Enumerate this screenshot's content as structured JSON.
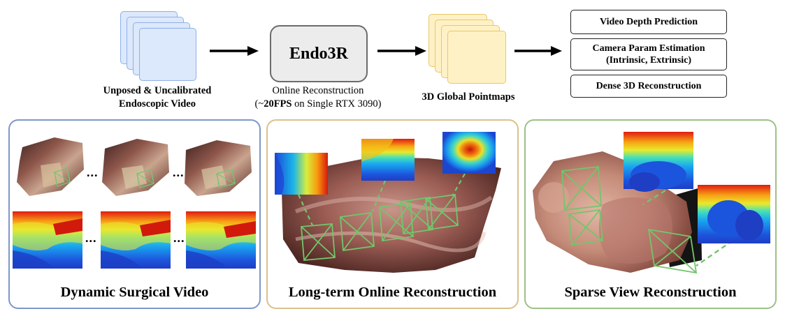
{
  "pipeline": {
    "input_caption_line1": "Unposed & Uncalibrated",
    "input_caption_line2": "Endoscopic Video",
    "model_name": "Endo3R",
    "model_caption_line1": "Online Reconstruction",
    "model_caption_line2_prefix": "(~",
    "model_caption_line2_bold": "20FPS",
    "model_caption_line2_suffix": " on Single RTX 3090)",
    "pointmaps_caption": "3D Global Pointmaps",
    "outputs": [
      {
        "line1": "Video Depth Prediction",
        "line2": ""
      },
      {
        "line1": "Camera Param Estimation",
        "line2": "(Intrinsic, Extrinsic)"
      },
      {
        "line1": "Dense 3D Reconstruction",
        "line2": ""
      }
    ]
  },
  "panels": [
    {
      "title": "Dynamic Surgical Video",
      "ellipsis": "...",
      "border_color": "#7e97c9"
    },
    {
      "title": "Long-term Online Reconstruction",
      "border_color": "#d9c28a"
    },
    {
      "title": "Sparse View Reconstruction",
      "border_color": "#9dc187"
    }
  ],
  "colors": {
    "frustum": "#72c66b",
    "tissue_dark": "#5a2f2a",
    "tissue_light": "#c79a8f"
  }
}
